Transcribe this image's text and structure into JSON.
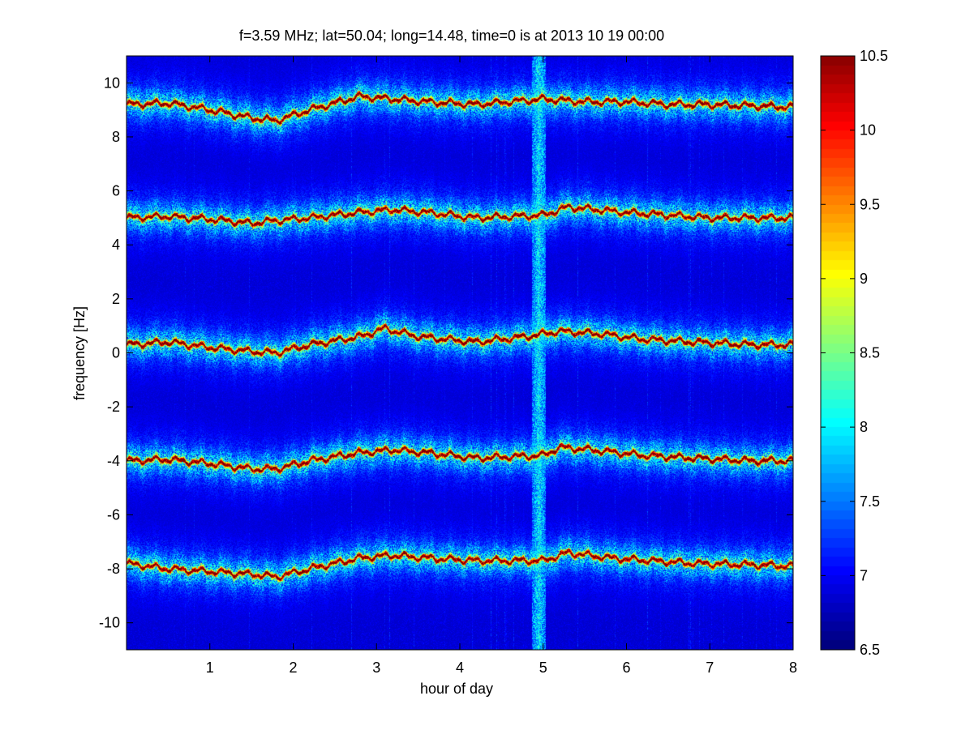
{
  "chart_data": {
    "type": "heatmap",
    "title": "f=3.59 MHz;  lat=50.04; long=14.48, time=0 is at 2013 10 19 00:00",
    "xlabel": "hour of day",
    "ylabel": "frequency [Hz]",
    "xlim": [
      0,
      8
    ],
    "ylim": [
      -11,
      11
    ],
    "xticks": [
      1,
      2,
      3,
      4,
      5,
      6,
      7,
      8
    ],
    "yticks": [
      10,
      8,
      6,
      4,
      2,
      0,
      -2,
      -4,
      -6,
      -8,
      -10
    ],
    "colorbar": {
      "range": [
        6.5,
        10.5
      ],
      "ticks": [
        10.5,
        10,
        9.5,
        9,
        8.5,
        8,
        7.5,
        7,
        6.5
      ],
      "colormap": "jet"
    },
    "background_level": 6.8,
    "grid": false,
    "bands": [
      {
        "center_hz": 9.1,
        "peak_level": 10.5,
        "trace": [
          [
            0,
            9.2
          ],
          [
            0.5,
            9.25
          ],
          [
            1,
            9.0
          ],
          [
            1.5,
            8.7
          ],
          [
            1.8,
            8.6
          ],
          [
            2.2,
            9.0
          ],
          [
            2.8,
            9.5
          ],
          [
            3.2,
            9.4
          ],
          [
            3.6,
            9.3
          ],
          [
            4.2,
            9.2
          ],
          [
            5.0,
            9.4
          ],
          [
            5.5,
            9.3
          ],
          [
            6.0,
            9.3
          ],
          [
            6.5,
            9.2
          ],
          [
            7.0,
            9.2
          ],
          [
            7.5,
            9.15
          ],
          [
            8,
            9.1
          ]
        ]
      },
      {
        "center_hz": 5.0,
        "peak_level": 10.4,
        "trace": [
          [
            0,
            5.0
          ],
          [
            0.5,
            5.05
          ],
          [
            1,
            4.95
          ],
          [
            1.5,
            4.8
          ],
          [
            1.8,
            4.9
          ],
          [
            2.2,
            5.0
          ],
          [
            2.8,
            5.2
          ],
          [
            3.2,
            5.3
          ],
          [
            3.6,
            5.2
          ],
          [
            4.2,
            5.0
          ],
          [
            5.0,
            5.1
          ],
          [
            5.3,
            5.4
          ],
          [
            6.0,
            5.2
          ],
          [
            6.5,
            5.1
          ],
          [
            7.0,
            5.0
          ],
          [
            7.5,
            5.0
          ],
          [
            8,
            5.0
          ]
        ]
      },
      {
        "center_hz": 0.3,
        "peak_level": 10.5,
        "trace": [
          [
            0,
            0.3
          ],
          [
            0.5,
            0.4
          ],
          [
            1,
            0.2
          ],
          [
            1.5,
            0.05
          ],
          [
            1.8,
            0.0
          ],
          [
            2.2,
            0.3
          ],
          [
            2.8,
            0.6
          ],
          [
            3.1,
            0.9
          ],
          [
            3.5,
            0.6
          ],
          [
            4.2,
            0.4
          ],
          [
            4.8,
            0.6
          ],
          [
            5.2,
            0.8
          ],
          [
            5.7,
            0.7
          ],
          [
            6.2,
            0.5
          ],
          [
            6.8,
            0.4
          ],
          [
            7.5,
            0.3
          ],
          [
            8,
            0.3
          ]
        ]
      },
      {
        "center_hz": -4.0,
        "peak_level": 10.5,
        "trace": [
          [
            0,
            -4.0
          ],
          [
            0.5,
            -3.95
          ],
          [
            1,
            -4.1
          ],
          [
            1.5,
            -4.3
          ],
          [
            1.8,
            -4.3
          ],
          [
            2.2,
            -4.0
          ],
          [
            2.8,
            -3.7
          ],
          [
            3.2,
            -3.6
          ],
          [
            3.6,
            -3.7
          ],
          [
            4.2,
            -3.9
          ],
          [
            5.0,
            -3.8
          ],
          [
            5.2,
            -3.5
          ],
          [
            5.6,
            -3.6
          ],
          [
            6.2,
            -3.8
          ],
          [
            6.8,
            -3.9
          ],
          [
            7.5,
            -4.0
          ],
          [
            8,
            -4.0
          ]
        ]
      },
      {
        "center_hz": -7.9,
        "peak_level": 10.4,
        "trace": [
          [
            0,
            -7.8
          ],
          [
            0.5,
            -8.0
          ],
          [
            1,
            -8.1
          ],
          [
            1.5,
            -8.2
          ],
          [
            1.8,
            -8.3
          ],
          [
            2.2,
            -8.0
          ],
          [
            2.8,
            -7.6
          ],
          [
            3.2,
            -7.5
          ],
          [
            3.6,
            -7.6
          ],
          [
            4.2,
            -7.7
          ],
          [
            5.0,
            -7.7
          ],
          [
            5.3,
            -7.4
          ],
          [
            5.8,
            -7.6
          ],
          [
            6.3,
            -7.7
          ],
          [
            6.8,
            -7.8
          ],
          [
            7.5,
            -7.85
          ],
          [
            8,
            -7.9
          ]
        ]
      }
    ],
    "broadband_event": {
      "hour": 4.95,
      "level": 8.0
    }
  }
}
